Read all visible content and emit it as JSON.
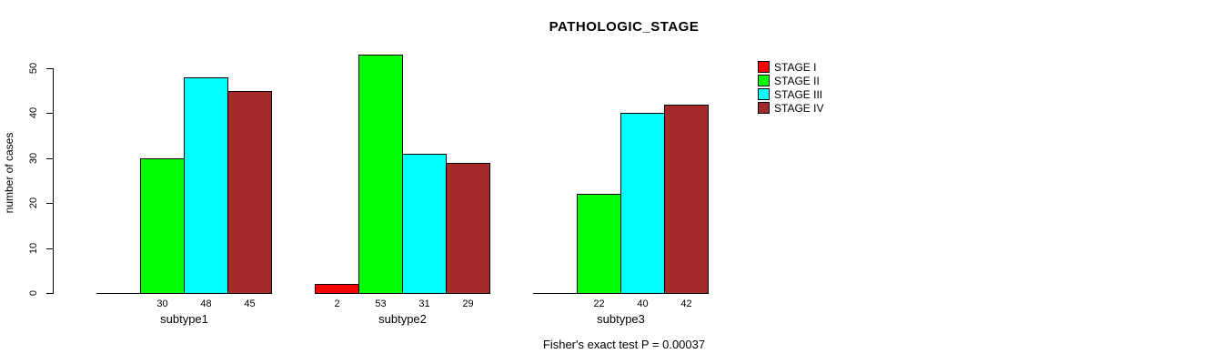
{
  "chart_data": {
    "type": "bar",
    "title": "PATHOLOGIC_STAGE",
    "xlabel": "",
    "ylabel": "number of cases",
    "ylim": [
      0,
      50
    ],
    "yticks": [
      0,
      10,
      20,
      30,
      40,
      50
    ],
    "grid": false,
    "legend_position": "top-right",
    "categories": [
      "subtype1",
      "subtype2",
      "subtype3"
    ],
    "series": [
      {
        "name": "STAGE I",
        "color": "#FF0000",
        "values": [
          0,
          2,
          0
        ]
      },
      {
        "name": "STAGE II",
        "color": "#00FF00",
        "values": [
          30,
          53,
          22
        ]
      },
      {
        "name": "STAGE III",
        "color": "#00FFFF",
        "values": [
          48,
          31,
          40
        ]
      },
      {
        "name": "STAGE IV",
        "color": "#A52A2A",
        "values": [
          45,
          29,
          42
        ]
      }
    ],
    "bar_value_labels": [
      "30",
      "48",
      "45",
      "2",
      "53",
      "31",
      "29",
      "22",
      "40",
      "42"
    ],
    "zero_bars_unlabeled": true,
    "annotation": "Fisher's exact test P = 0.00037"
  }
}
